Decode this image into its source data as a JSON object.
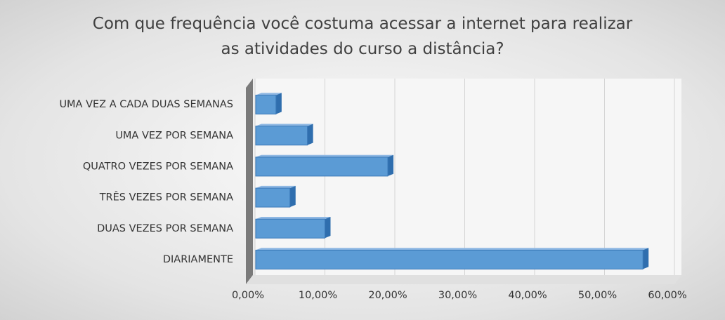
{
  "chart_data": {
    "type": "barh",
    "title": "Com que frequência você costuma acessar a internet para realizar as atividades do curso a distância?",
    "categories": [
      "UMA VEZ A CADA DUAS SEMANAS",
      "UMA VEZ POR SEMANA",
      "QUATRO VEZES POR SEMANA",
      "TRÊS VEZES POR SEMANA",
      "DUAS VEZES POR SEMANA",
      "DIARIAMENTE"
    ],
    "values": [
      3,
      7.5,
      19,
      5,
      10,
      55.5
    ],
    "color": "#5b9bd5",
    "xlim": [
      0,
      60
    ],
    "xticks": [
      {
        "value": 0,
        "label": "0,00%"
      },
      {
        "value": 10,
        "label": "10,00%"
      },
      {
        "value": 20,
        "label": "20,00%"
      },
      {
        "value": 30,
        "label": "30,00%"
      },
      {
        "value": 40,
        "label": "40,00%"
      },
      {
        "value": 50,
        "label": "50,00%"
      },
      {
        "value": 60,
        "label": "60,00%"
      }
    ],
    "grid": true
  }
}
